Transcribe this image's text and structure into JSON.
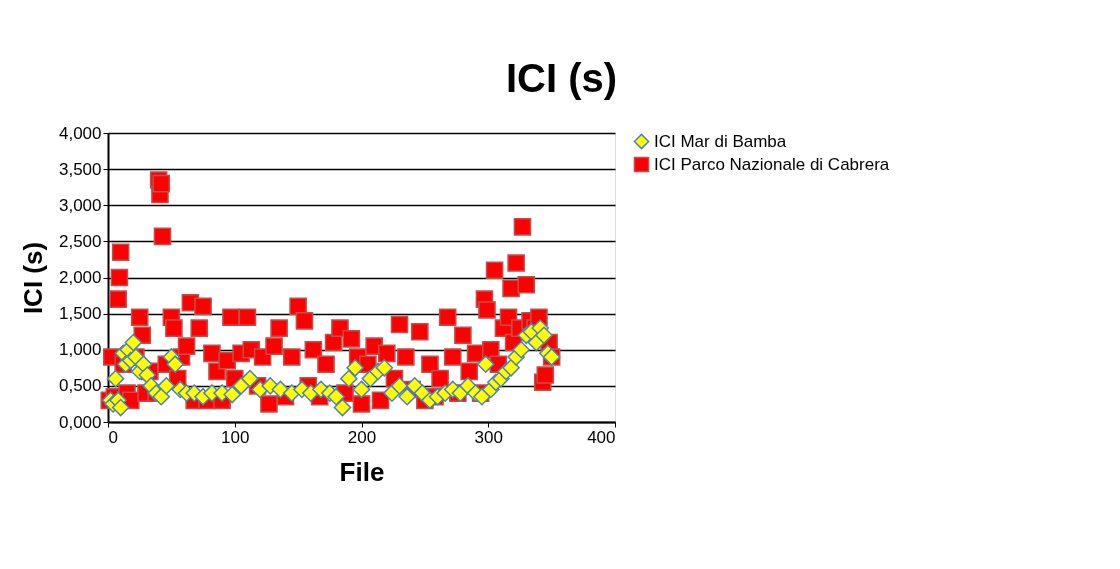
{
  "chart_data": {
    "type": "scatter",
    "title": "ICI (s)",
    "xlabel": "File",
    "ylabel": "ICI (s)",
    "xlim": [
      0,
      400
    ],
    "xticks": [
      0,
      100,
      200,
      300,
      400
    ],
    "ylim": [
      0,
      4
    ],
    "yticks": [
      {
        "value": 0,
        "label": "0,000"
      },
      {
        "value": 0.5,
        "label": "0,500"
      },
      {
        "value": 1,
        "label": "1,000"
      },
      {
        "value": 1.5,
        "label": "1,500"
      },
      {
        "value": 2,
        "label": "2,000"
      },
      {
        "value": 2.5,
        "label": "2,500"
      },
      {
        "value": 3,
        "label": "3,000"
      },
      {
        "value": 3.5,
        "label": "3,500"
      },
      {
        "value": 4,
        "label": "4,000"
      }
    ],
    "grid": "y",
    "legend": "right",
    "series": [
      {
        "name": "ICI Parco Nazionale di Cabrera",
        "color": "#ff0000",
        "marker": "square",
        "x": [
          1,
          3,
          5,
          8,
          9,
          10,
          12,
          15,
          18,
          22,
          25,
          27,
          30,
          33,
          38,
          40,
          41,
          42,
          43,
          46,
          50,
          52,
          55,
          58,
          62,
          65,
          68,
          72,
          75,
          78,
          82,
          86,
          90,
          94,
          97,
          100,
          105,
          110,
          113,
          118,
          122,
          127,
          131,
          135,
          140,
          145,
          150,
          155,
          158,
          162,
          167,
          172,
          178,
          183,
          187,
          192,
          197,
          200,
          205,
          210,
          215,
          220,
          226,
          230,
          235,
          240,
          246,
          250,
          254,
          258,
          262,
          268,
          272,
          276,
          280,
          285,
          290,
          294,
          297,
          299,
          302,
          305,
          308,
          312,
          316,
          318,
          320,
          322,
          325,
          327,
          330,
          333,
          337,
          340,
          343,
          345,
          348,
          350
        ],
        "values": [
          0.3,
          0.9,
          0.35,
          1.7,
          2.0,
          2.35,
          0.8,
          0.4,
          0.3,
          0.9,
          1.45,
          1.2,
          0.4,
          0.7,
          0.4,
          3.35,
          3.15,
          3.3,
          2.57,
          0.8,
          1.45,
          1.3,
          0.6,
          0.9,
          1.05,
          1.65,
          0.3,
          1.3,
          1.6,
          0.3,
          0.95,
          0.7,
          0.3,
          0.85,
          1.45,
          0.6,
          0.95,
          1.45,
          1.0,
          0.5,
          0.9,
          0.25,
          1.05,
          1.3,
          0.35,
          0.9,
          1.6,
          1.4,
          0.5,
          1.0,
          0.35,
          0.8,
          1.1,
          1.3,
          0.4,
          1.15,
          0.9,
          0.25,
          0.8,
          1.05,
          0.3,
          0.95,
          0.6,
          1.35,
          0.9,
          0.45,
          1.25,
          0.3,
          0.8,
          0.35,
          0.6,
          1.45,
          0.9,
          0.4,
          1.2,
          0.7,
          0.95,
          0.4,
          1.7,
          1.55,
          1.0,
          2.1,
          0.8,
          1.3,
          1.45,
          1.85,
          1.1,
          2.2,
          1.3,
          2.7,
          1.9,
          1.4,
          1.3,
          1.45,
          0.55,
          0.65,
          1.1,
          0.9
        ]
      },
      {
        "name": "ICI Mar di Bamba",
        "color": "#ffff00",
        "marker": "diamond",
        "x": [
          2,
          4,
          6,
          8,
          10,
          12,
          14,
          16,
          18,
          20,
          22,
          25,
          28,
          31,
          34,
          38,
          42,
          46,
          50,
          53,
          57,
          62,
          68,
          75,
          82,
          90,
          98,
          105,
          112,
          120,
          128,
          136,
          145,
          153,
          160,
          168,
          175,
          180,
          185,
          190,
          195,
          200,
          207,
          213,
          218,
          224,
          230,
          236,
          242,
          248,
          254,
          260,
          266,
          272,
          278,
          284,
          290,
          295,
          298,
          302,
          306,
          310,
          314,
          318,
          322,
          326,
          330,
          334,
          338,
          341,
          344,
          347,
          350
        ],
        "values": [
          0.3,
          0.25,
          0.6,
          0.3,
          0.2,
          0.95,
          0.8,
          1.0,
          0.85,
          1.1,
          0.9,
          0.7,
          0.8,
          0.65,
          0.5,
          0.4,
          0.35,
          0.5,
          0.9,
          0.8,
          0.45,
          0.4,
          0.4,
          0.35,
          0.4,
          0.4,
          0.38,
          0.5,
          0.6,
          0.45,
          0.5,
          0.45,
          0.4,
          0.45,
          0.4,
          0.45,
          0.4,
          0.35,
          0.2,
          0.6,
          0.75,
          0.45,
          0.6,
          0.7,
          0.75,
          0.4,
          0.5,
          0.35,
          0.5,
          0.4,
          0.3,
          0.35,
          0.4,
          0.45,
          0.4,
          0.5,
          0.4,
          0.35,
          0.8,
          0.45,
          0.55,
          0.6,
          0.7,
          0.75,
          0.9,
          1.0,
          1.2,
          1.25,
          1.1,
          1.3,
          1.2,
          0.95,
          0.9
        ]
      }
    ]
  }
}
